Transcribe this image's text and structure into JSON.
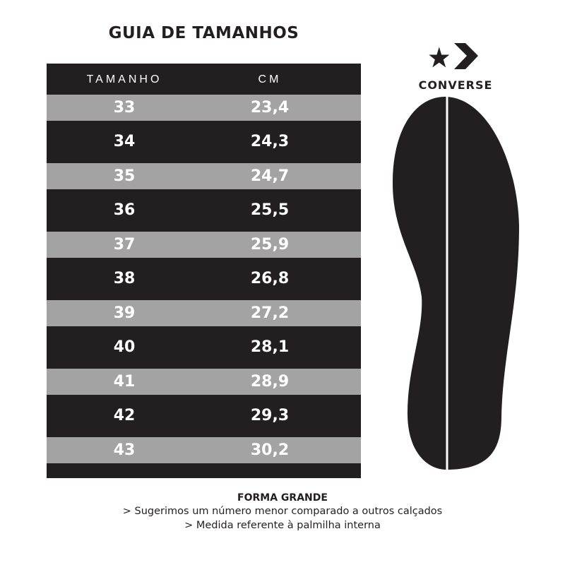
{
  "title": "GUIA DE TAMANHOS",
  "table": {
    "headers": [
      "TAMANHO",
      "CM"
    ],
    "rows": [
      [
        "33",
        "23,4"
      ],
      [
        "34",
        "24,3"
      ],
      [
        "35",
        "24,7"
      ],
      [
        "36",
        "25,5"
      ],
      [
        "37",
        "25,9"
      ],
      [
        "38",
        "26,8"
      ],
      [
        "39",
        "27,2"
      ],
      [
        "40",
        "28,1"
      ],
      [
        "41",
        "28,9"
      ],
      [
        "42",
        "29,3"
      ],
      [
        "43",
        "30,2"
      ]
    ]
  },
  "brand": {
    "name": "CONVERSE",
    "icon": "converse-star-chevron-logo"
  },
  "footer": {
    "heading": "FORMA GRANDE",
    "lines": [
      "> Sugerimos um número menor comparado a outros calçados",
      "> Medida referente à palmilha interna"
    ]
  },
  "colors": {
    "dark": "#231f20",
    "gray_row": "#a3a3a3",
    "text_light": "#ffffff"
  }
}
